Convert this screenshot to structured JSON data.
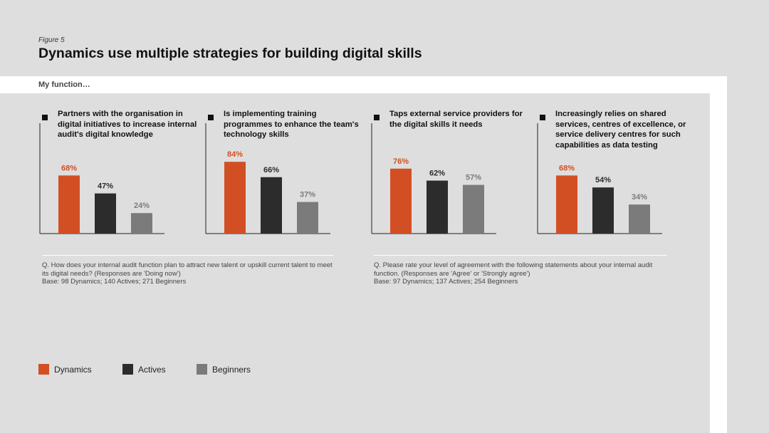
{
  "figure_label": "Figure 5",
  "title": "Dynamics use multiple strategies for building digital skills",
  "subtitle": "My function…",
  "colors": {
    "dynamics": "#d24f24",
    "actives": "#2c2c2c",
    "beginners": "#7b7b7b"
  },
  "legend": [
    {
      "name": "Dynamics",
      "color": "#d24f24"
    },
    {
      "name": "Actives",
      "color": "#2c2c2c"
    },
    {
      "name": "Beginners",
      "color": "#7b7b7b"
    }
  ],
  "chart_data": [
    {
      "type": "bar",
      "title": "Partners with the organisation in digital initiatives to increase internal audit's digital knowledge",
      "categories": [
        "Dynamics",
        "Actives",
        "Beginners"
      ],
      "values": [
        68,
        47,
        24
      ],
      "labels": [
        "68%",
        "47%",
        "24%"
      ],
      "ylim": [
        0,
        100
      ]
    },
    {
      "type": "bar",
      "title": "Is implementing training programmes to enhance the team's technology skills",
      "categories": [
        "Dynamics",
        "Actives",
        "Beginners"
      ],
      "values": [
        84,
        66,
        37
      ],
      "labels": [
        "84%",
        "66%",
        "37%"
      ],
      "ylim": [
        0,
        100
      ]
    },
    {
      "type": "bar",
      "title": "Taps external service providers for the digital skills it needs",
      "categories": [
        "Dynamics",
        "Actives",
        "Beginners"
      ],
      "values": [
        76,
        62,
        57
      ],
      "labels": [
        "76%",
        "62%",
        "57%"
      ],
      "ylim": [
        0,
        100
      ]
    },
    {
      "type": "bar",
      "title": "Increasingly relies on shared services, centres of excellence, or service delivery centres for such capabilities as data testing",
      "categories": [
        "Dynamics",
        "Actives",
        "Beginners"
      ],
      "values": [
        68,
        54,
        34
      ],
      "labels": [
        "68%",
        "54%",
        "34%"
      ],
      "ylim": [
        0,
        100
      ]
    }
  ],
  "footnotes": [
    {
      "question": "Q. How does your internal audit function plan to attract new talent or upskill current talent to meet its digital needs? (Responses are 'Doing now')",
      "base": "Base: 98 Dynamics; 140 Actives; 271 Beginners"
    },
    {
      "question": "Q. Please rate your level of agreement with the following statements about your internal audit function. (Responses are 'Agree' or 'Strongly agree')",
      "base": "Base: 97 Dynamics; 137 Actives; 254 Beginners"
    }
  ]
}
